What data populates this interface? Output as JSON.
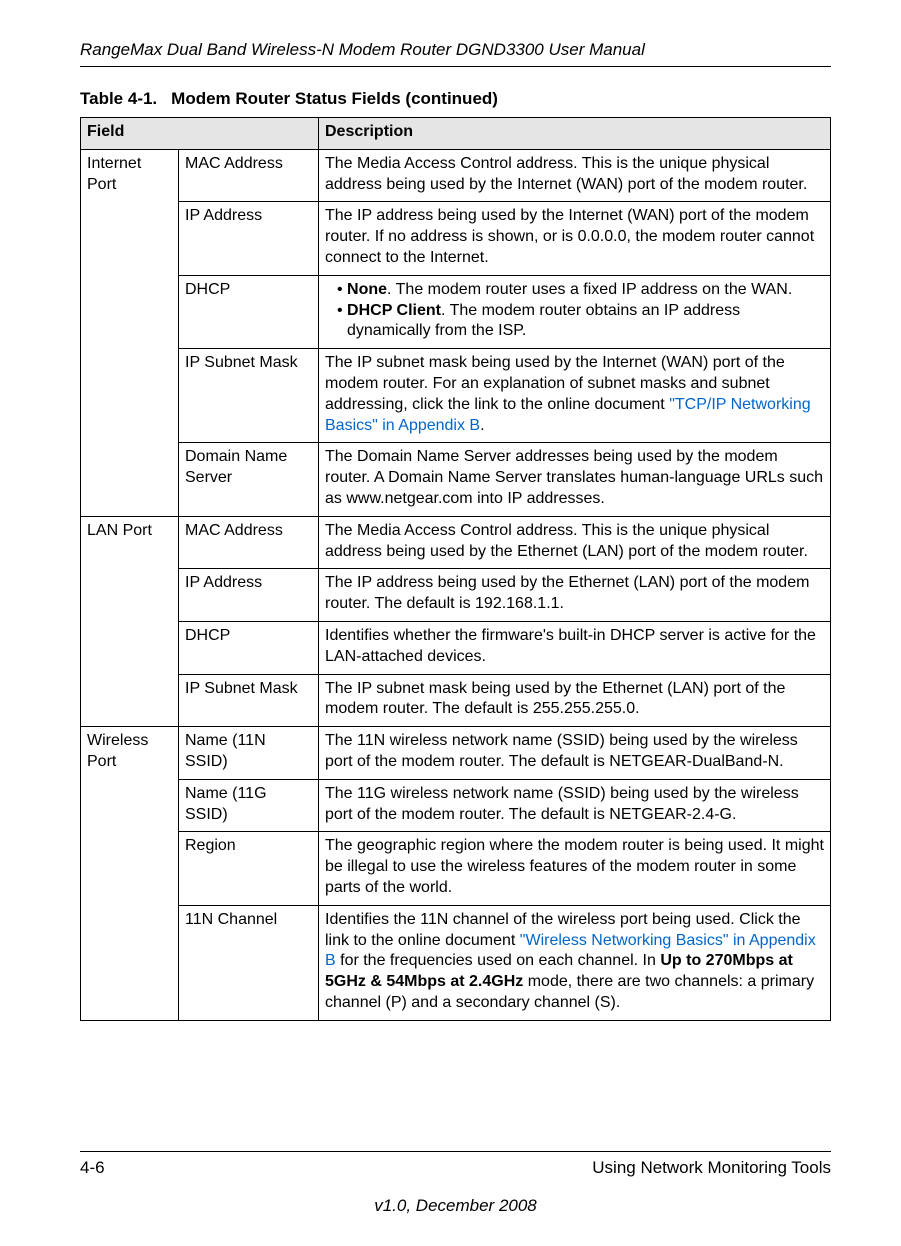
{
  "header": {
    "running_title": "RangeMax Dual Band Wireless-N Modem Router DGND3300 User Manual"
  },
  "table": {
    "caption_number": "Table 4-1.",
    "caption_title": "Modem Router Status Fields (continued)",
    "columns": {
      "field": "Field",
      "description": "Description"
    },
    "groups": [
      {
        "group": "Internet Port",
        "rows": [
          {
            "field": "MAC Address",
            "desc": "The Media Access Control address. This is the unique physical address being used by the Internet (WAN) port of the modem router."
          },
          {
            "field": "IP Address",
            "desc": "The IP address being used by the Internet (WAN) port of the modem router. If no address is shown, or is 0.0.0.0, the modem router cannot connect to the Internet."
          },
          {
            "field": "DHCP",
            "bullets": [
              {
                "bold": "None",
                "rest": ". The modem router uses a fixed IP address on the WAN."
              },
              {
                "bold": "DHCP Client",
                "rest": ". The modem router obtains an IP address dynamically from the ISP."
              }
            ]
          },
          {
            "field": "IP Subnet Mask",
            "desc_pre": "The IP subnet mask being used by the Internet (WAN) port of the modem router. For an explanation of subnet masks and subnet addressing, click the link to the online document ",
            "link": "\"TCP/IP Networking Basics\" in Appendix B",
            "desc_post": "."
          },
          {
            "field": "Domain Name Server",
            "desc": "The Domain Name Server addresses being used by the modem router. A Domain Name Server translates human-language URLs such as www.netgear.com into IP addresses."
          }
        ]
      },
      {
        "group": "LAN Port",
        "rows": [
          {
            "field": "MAC Address",
            "desc": "The Media Access Control address. This is the unique physical address being used by the Ethernet (LAN) port of the modem router."
          },
          {
            "field": "IP Address",
            "desc": "The IP address being used by the Ethernet (LAN) port of the modem router. The default is 192.168.1.1."
          },
          {
            "field": "DHCP",
            "desc": "Identifies whether the firmware's built-in DHCP server is active for the LAN-attached devices."
          },
          {
            "field": "IP Subnet Mask",
            "desc": "The IP subnet mask being used by the Ethernet (LAN) port of the modem router. The default is 255.255.255.0."
          }
        ]
      },
      {
        "group": "Wireless Port",
        "rows": [
          {
            "field": "Name (11N SSID)",
            "desc": "The 11N wireless network name (SSID) being used by the wireless port of the modem router. The default is NETGEAR-DualBand-N."
          },
          {
            "field": "Name (11G SSID)",
            "desc": "The 11G wireless network name (SSID) being used by the wireless port of the modem router. The default is NETGEAR-2.4-G."
          },
          {
            "field": "Region",
            "desc": "The geographic region where the modem router is being used. It might be illegal to use the wireless features of the modem router in some parts of the world."
          },
          {
            "field": "11N Channel",
            "desc_pre": "Identifies the 11N channel of the wireless port being used. Click the link to the online document ",
            "link": "\"Wireless Networking Basics\" in Appendix B",
            "desc_mid": " for the frequencies used on each channel. In ",
            "bold": "Up to 270Mbps at 5GHz & 54Mbps at 2.4GHz",
            "desc_post": " mode, there are two channels: a primary channel (P) and a secondary channel (S)."
          }
        ]
      }
    ]
  },
  "footer": {
    "page": "4-6",
    "section": "Using Network Monitoring Tools",
    "version": "v1.0, December 2008"
  }
}
